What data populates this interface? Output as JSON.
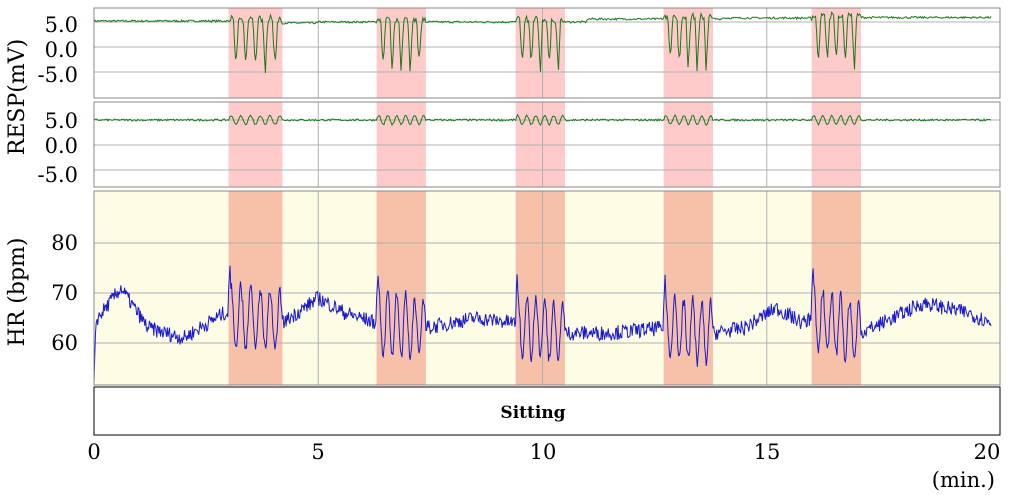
{
  "chart_data": [
    {
      "type": "line",
      "panel": "resp-1",
      "ylabel": "RESP(mV)",
      "yticks": [
        "5.0",
        "0.0",
        "-5.0"
      ],
      "ylim": [
        -8.5,
        7.5
      ],
      "xlim": [
        0,
        20.2
      ],
      "grid": true,
      "series": [
        {
          "color": "#1a7a1a",
          "baseline": 5.0,
          "baseline_step": [
            [
              0,
              5.2
            ],
            [
              4.2,
              4.8
            ],
            [
              5,
              5.0
            ],
            [
              11,
              5.6
            ],
            [
              14,
              5.8
            ],
            [
              17,
              5.9
            ],
            [
              20,
              6.0
            ]
          ],
          "dip_min": -4.5
        }
      ],
      "highlight_intervals": [
        [
          3.0,
          4.2
        ],
        [
          6.3,
          7.4
        ],
        [
          9.4,
          10.5
        ],
        [
          12.7,
          13.8
        ],
        [
          16.0,
          17.1
        ]
      ]
    },
    {
      "type": "line",
      "panel": "resp-2",
      "ylabel": "",
      "yticks": [
        "5.0",
        "0.0",
        "-5.0"
      ],
      "ylim": [
        -8.5,
        7.5
      ],
      "xlim": [
        0,
        20.2
      ],
      "grid": true,
      "series": [
        {
          "color": "#1a7a1a",
          "baseline": 5.0,
          "wave_amp": 0.9
        }
      ],
      "highlight_intervals": [
        [
          3.0,
          4.2
        ],
        [
          6.3,
          7.4
        ],
        [
          9.4,
          10.5
        ],
        [
          12.7,
          13.8
        ],
        [
          16.0,
          17.1
        ]
      ]
    },
    {
      "type": "line",
      "panel": "hr",
      "ylabel": "HR (bpm)",
      "yticks": [
        "80",
        "70",
        "60"
      ],
      "ytick_values": [
        80,
        70,
        60
      ],
      "ylim": [
        50,
        90
      ],
      "xlim": [
        0,
        20.2
      ],
      "grid": true,
      "background": "#fcfde4",
      "series": [
        {
          "color": "#1a1ad0",
          "baseline_profile": [
            [
              0,
              64
            ],
            [
              0.6,
              71
            ],
            [
              1.2,
              63
            ],
            [
              2,
              61
            ],
            [
              2.9,
              66
            ],
            [
              4.2,
              64
            ],
            [
              5,
              69
            ],
            [
              5.6,
              66
            ],
            [
              6.3,
              64
            ],
            [
              7.4,
              63
            ],
            [
              8.5,
              65
            ],
            [
              9.4,
              64
            ],
            [
              10.5,
              62
            ],
            [
              11.5,
              62
            ],
            [
              12.7,
              63
            ],
            [
              13.8,
              62
            ],
            [
              14.5,
              63
            ],
            [
              15.2,
              67
            ],
            [
              15.8,
              64
            ],
            [
              16.0,
              65
            ],
            [
              17.1,
              62
            ],
            [
              17.8,
              65
            ],
            [
              18.5,
              68
            ],
            [
              19.5,
              66
            ],
            [
              20,
              64
            ]
          ],
          "osc_amp": 6
        }
      ],
      "highlight_intervals": [
        [
          3.0,
          4.2
        ],
        [
          6.3,
          7.4
        ],
        [
          9.4,
          10.5
        ],
        [
          12.7,
          13.8
        ],
        [
          16.0,
          17.1
        ]
      ]
    }
  ],
  "xaxis": {
    "ticks": [
      "0",
      "5",
      "10",
      "15",
      "20"
    ],
    "tick_values": [
      0,
      5,
      10,
      15,
      20
    ],
    "unit": "(min.)"
  },
  "posture": {
    "label": "Sitting"
  },
  "colors": {
    "highlight": "#ff9999",
    "resp_line": "#1a7a1a",
    "hr_line": "#1a1ad0",
    "grid": "#b0b0b0",
    "hr_background": "#fcfde4"
  }
}
